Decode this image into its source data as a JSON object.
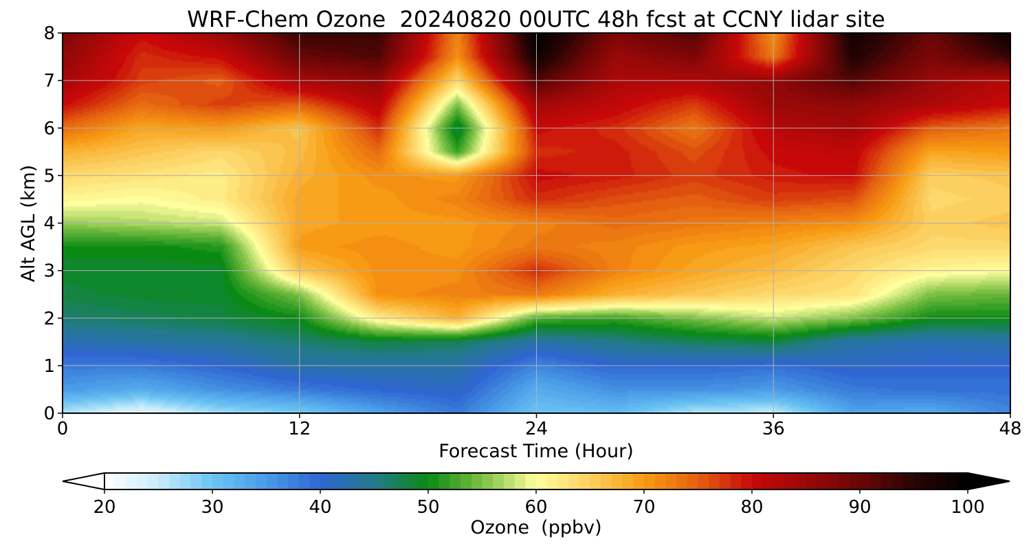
{
  "chart_data": {
    "type": "heatmap",
    "title": "WRF-Chem Ozone  20240820 00UTC 48h fcst at CCNY lidar site",
    "xlabel": "Forecast Time (Hour)",
    "ylabel": "Alt AGL (km)",
    "xlim": [
      0,
      48
    ],
    "ylim": [
      0,
      8
    ],
    "xticks": [
      0,
      12,
      24,
      36,
      48
    ],
    "yticks": [
      0,
      1,
      2,
      3,
      4,
      5,
      6,
      7,
      8
    ],
    "grid": true,
    "colorbar": {
      "label": "Ozone  (ppbv)",
      "min": 20,
      "max": 100,
      "ticks": [
        20,
        30,
        40,
        50,
        60,
        70,
        80,
        90,
        100
      ],
      "extend": "both",
      "stops": [
        {
          "v": 20,
          "c": "#ffffff"
        },
        {
          "v": 25,
          "c": "#c8ecfb"
        },
        {
          "v": 30,
          "c": "#6cc4f3"
        },
        {
          "v": 35,
          "c": "#4a9be8"
        },
        {
          "v": 40,
          "c": "#2f66d1"
        },
        {
          "v": 45,
          "c": "#237a8a"
        },
        {
          "v": 50,
          "c": "#0a8a14"
        },
        {
          "v": 55,
          "c": "#7cc043"
        },
        {
          "v": 60,
          "c": "#ffffa0"
        },
        {
          "v": 65,
          "c": "#fcd060"
        },
        {
          "v": 70,
          "c": "#f89b14"
        },
        {
          "v": 75,
          "c": "#e46010"
        },
        {
          "v": 80,
          "c": "#c80808"
        },
        {
          "v": 85,
          "c": "#9a0808"
        },
        {
          "v": 90,
          "c": "#6a0606"
        },
        {
          "v": 95,
          "c": "#2a0404"
        },
        {
          "v": 100,
          "c": "#000000"
        }
      ]
    },
    "x": [
      0,
      4,
      8,
      12,
      16,
      20,
      24,
      28,
      32,
      36,
      40,
      44,
      48
    ],
    "y": [
      0,
      0.5,
      1,
      1.5,
      2,
      2.5,
      3,
      3.5,
      4,
      4.5,
      5,
      5.5,
      6,
      6.5,
      7,
      7.5,
      8
    ],
    "z": [
      [
        26,
        22,
        27,
        29,
        34,
        38,
        30,
        31,
        26,
        25,
        34,
        33,
        37
      ],
      [
        35,
        33,
        36,
        38,
        40,
        41,
        33,
        36,
        36,
        35,
        38,
        39,
        39
      ],
      [
        38,
        38,
        40,
        43,
        43,
        43,
        37,
        40,
        40,
        39,
        41,
        40,
        40
      ],
      [
        42,
        43,
        44,
        46,
        48,
        47,
        43,
        45,
        47,
        48,
        43,
        42,
        43
      ],
      [
        46,
        47,
        48,
        50,
        62,
        68,
        53,
        52,
        55,
        58,
        55,
        50,
        50
      ],
      [
        48,
        49,
        49,
        55,
        71,
        72,
        73,
        68,
        66,
        64,
        63,
        55,
        54
      ],
      [
        49,
        49,
        49,
        66,
        71,
        71,
        78,
        72,
        69,
        67,
        64,
        61,
        60
      ],
      [
        50,
        50,
        51,
        70,
        71,
        70,
        73,
        72,
        70,
        69,
        66,
        64,
        64
      ],
      [
        56,
        57,
        58,
        69,
        70,
        70,
        72,
        74,
        73,
        72,
        71,
        65,
        66
      ],
      [
        61,
        60,
        62,
        69,
        70,
        72,
        78,
        76,
        75,
        77,
        76,
        64,
        65
      ],
      [
        64,
        63,
        62,
        68,
        71,
        70,
        80,
        79,
        77,
        79,
        80,
        65,
        66
      ],
      [
        68,
        66,
        64,
        67,
        74,
        52,
        78,
        79,
        76,
        80,
        81,
        69,
        70
      ],
      [
        74,
        69,
        70,
        66,
        78,
        48,
        80,
        78,
        73,
        82,
        84,
        75,
        73
      ],
      [
        80,
        74,
        77,
        75,
        82,
        55,
        84,
        81,
        77,
        85,
        86,
        83,
        80
      ],
      [
        84,
        77,
        75,
        84,
        86,
        64,
        92,
        83,
        83,
        86,
        92,
        85,
        82
      ],
      [
        86,
        78,
        80,
        90,
        92,
        71,
        98,
        85,
        88,
        73,
        96,
        88,
        94
      ],
      [
        88,
        80,
        85,
        94,
        94,
        72,
        100,
        88,
        92,
        71,
        98,
        90,
        99
      ]
    ]
  }
}
